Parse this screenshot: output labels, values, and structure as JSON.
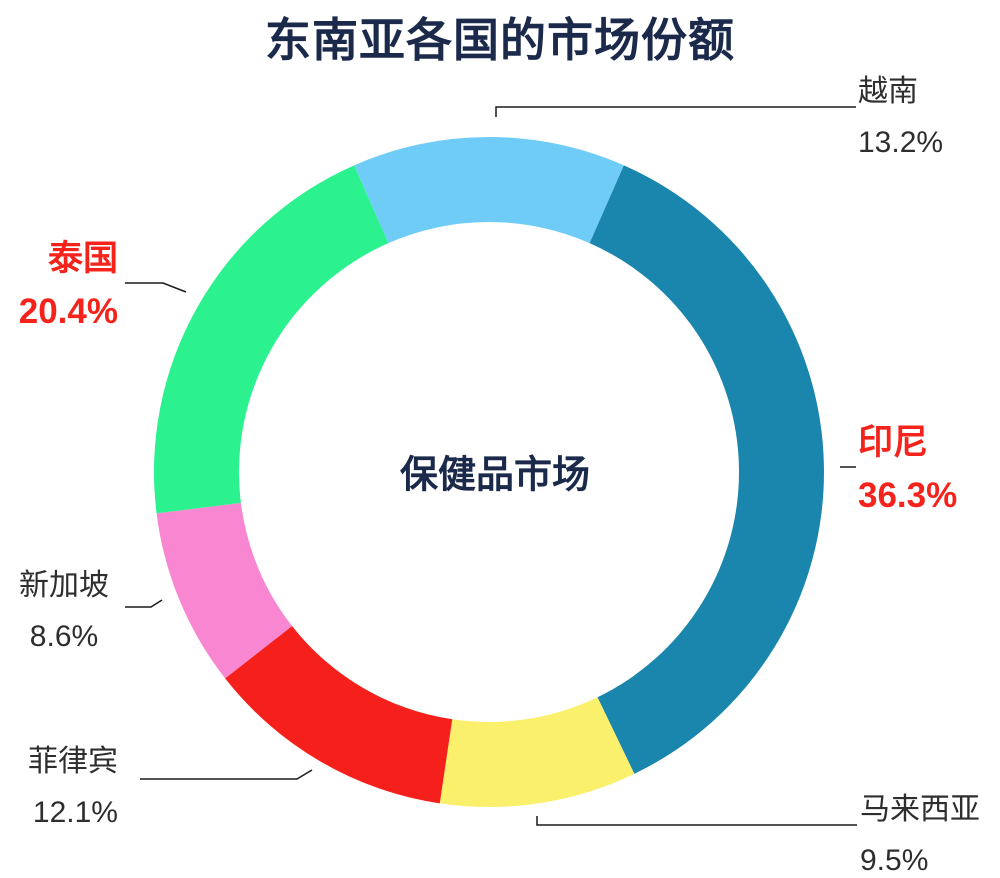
{
  "title": "东南亚各国的市场份额",
  "chart_data": {
    "type": "pie",
    "variant": "donut",
    "title": "东南亚各国的市场份额",
    "center_label": "保健品市场",
    "order": "clockwise from 12 o'clock, first segment centered at top",
    "total": 100.1,
    "segments": [
      {
        "label": "越南",
        "value": 13.2,
        "pct_label": "13.2%",
        "color": "#6fccf7",
        "emphasis": false
      },
      {
        "label": "印尼",
        "value": 36.3,
        "pct_label": "36.3%",
        "color": "#1b86ad",
        "emphasis": true
      },
      {
        "label": "马来西亚",
        "value": 9.5,
        "pct_label": "9.5%",
        "color": "#fbf06c",
        "emphasis": false
      },
      {
        "label": "菲律宾",
        "value": 12.1,
        "pct_label": "12.1%",
        "color": "#f5201b",
        "emphasis": false
      },
      {
        "label": "新加坡",
        "value": 8.6,
        "pct_label": "8.6%",
        "color": "#f986d1",
        "emphasis": false
      },
      {
        "label": "泰国",
        "value": 20.4,
        "pct_label": "20.4%",
        "color": "#2bf28f",
        "emphasis": true
      }
    ],
    "colors": {
      "title": "#1b2a4a",
      "center_label": "#1b2a4a",
      "label_text": "#2e2e2e",
      "emphasis_text": "#f4241c",
      "leader_line": "#1a1a1a",
      "background": "#ffffff"
    },
    "legend": "none, direct labels with leader lines"
  }
}
